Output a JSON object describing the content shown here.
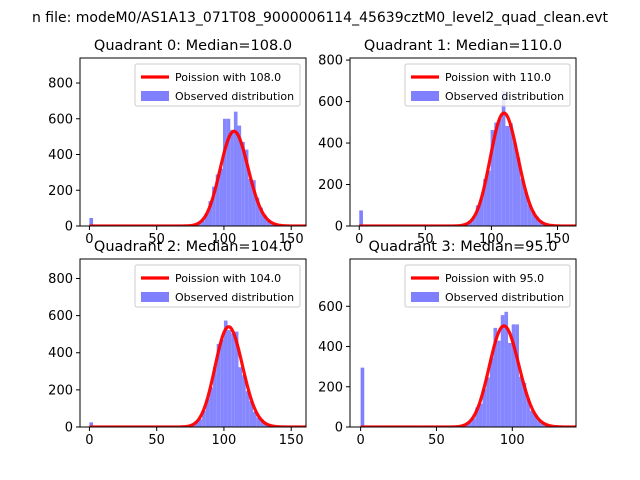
{
  "figure": {
    "suptitle": "n file: modeM0/AS1A13_071T08_9000006114_45639cztM0_level2_quad_clean.evt"
  },
  "colors": {
    "observed": "#8080ff",
    "poisson": "#ff0000",
    "axis": "#000000",
    "background": "#ffffff"
  },
  "legend_labels": {
    "observed": "Observed distribution"
  },
  "chart_data": [
    {
      "type": "bar",
      "title": "Quadrant 0: Median=108.0",
      "poisson_label": "Poission with 108.0",
      "median": 108.0,
      "xlim": [
        -7,
        161
      ],
      "ylim": [
        0,
        940
      ],
      "xticks": [
        0,
        50,
        100,
        150
      ],
      "yticks": [
        0,
        200,
        400,
        600,
        800
      ],
      "bin_width": 2.7,
      "outlier_bins": [
        {
          "x": 0,
          "y": 45
        }
      ],
      "bar_scale": 1.0,
      "dip": {
        "x": 101,
        "y": 600
      },
      "legend_loc": "upper right",
      "xlabel": "",
      "ylabel": ""
    },
    {
      "type": "bar",
      "title": "Quadrant 1: Median=110.0",
      "poisson_label": "Poission with 110.0",
      "median": 110.0,
      "xlim": [
        -7,
        164
      ],
      "ylim": [
        0,
        810
      ],
      "xticks": [
        0,
        50,
        100,
        150
      ],
      "yticks": [
        0,
        200,
        400,
        600,
        800
      ],
      "bin_width": 2.8,
      "outlier_bins": [
        {
          "x": 0,
          "y": 75
        }
      ],
      "bar_scale": 0.98,
      "dip": null,
      "legend_loc": "upper right",
      "xlabel": "",
      "ylabel": ""
    },
    {
      "type": "bar",
      "title": "Quadrant 2: Median=104.0",
      "poisson_label": "Poission with 104.0",
      "median": 104.0,
      "xlim": [
        -7,
        161
      ],
      "ylim": [
        0,
        905
      ],
      "xticks": [
        0,
        50,
        100,
        150
      ],
      "yticks": [
        0,
        200,
        400,
        600,
        800
      ],
      "bin_width": 2.7,
      "outlier_bins": [
        {
          "x": 0,
          "y": 25
        }
      ],
      "bar_scale": 0.9,
      "dip": null,
      "legend_loc": "upper right",
      "xlabel": "",
      "ylabel": ""
    },
    {
      "type": "bar",
      "title": "Quadrant 3: Median=95.0",
      "poisson_label": "Poission with 95.0",
      "median": 95.0,
      "xlim": [
        -7,
        142
      ],
      "ylim": [
        0,
        835
      ],
      "xticks": [
        0,
        50,
        100
      ],
      "yticks": [
        0,
        200,
        400,
        600
      ],
      "bin_width": 2.4,
      "outlier_bins": [
        {
          "x": 0,
          "y": 295
        }
      ],
      "bar_scale": 0.95,
      "dip": {
        "x": 100,
        "y": 510
      },
      "legend_loc": "upper right",
      "xlabel": "",
      "ylabel": ""
    }
  ]
}
